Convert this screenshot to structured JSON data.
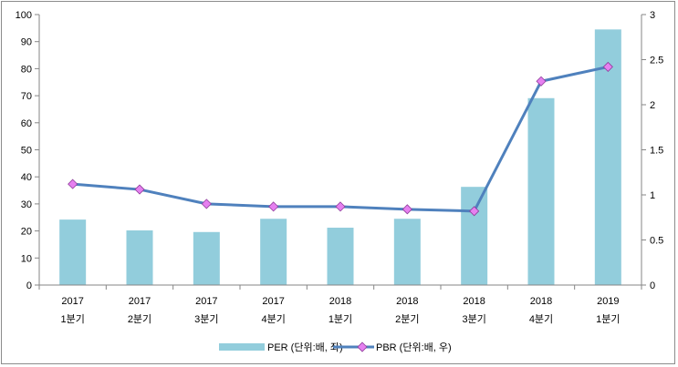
{
  "chart_data": {
    "type": "bar",
    "categories": [
      [
        "2017",
        "1분기"
      ],
      [
        "2017",
        "2분기"
      ],
      [
        "2017",
        "3분기"
      ],
      [
        "2017",
        "4분기"
      ],
      [
        "2018",
        "1분기"
      ],
      [
        "2018",
        "2분기"
      ],
      [
        "2018",
        "3분기"
      ],
      [
        "2018",
        "4분기"
      ],
      [
        "2019",
        "1분기"
      ]
    ],
    "series": [
      {
        "name": "PER (단위:배, 좌)",
        "type": "bar",
        "axis": "left",
        "color": "#92cddc",
        "values": [
          24.2,
          20.2,
          19.6,
          24.5,
          21.2,
          24.5,
          36.3,
          69.1,
          94.5
        ]
      },
      {
        "name": "PBR (단위:배, 우)",
        "type": "line",
        "axis": "right",
        "color": "#4f81bd",
        "marker_color": "#e680f0",
        "values": [
          1.12,
          1.06,
          0.9,
          0.87,
          0.87,
          0.84,
          0.82,
          2.26,
          2.42
        ]
      }
    ],
    "y_left": {
      "min": 0,
      "max": 100,
      "ticks": [
        "0",
        "10",
        "20",
        "30",
        "40",
        "50",
        "60",
        "70",
        "80",
        "90",
        "100"
      ]
    },
    "y_right": {
      "min": 0,
      "max": 3,
      "ticks": [
        "0",
        "0.5",
        "1",
        "1.5",
        "2",
        "2.5",
        "3"
      ]
    },
    "grid": false,
    "legend_position": "bottom"
  }
}
